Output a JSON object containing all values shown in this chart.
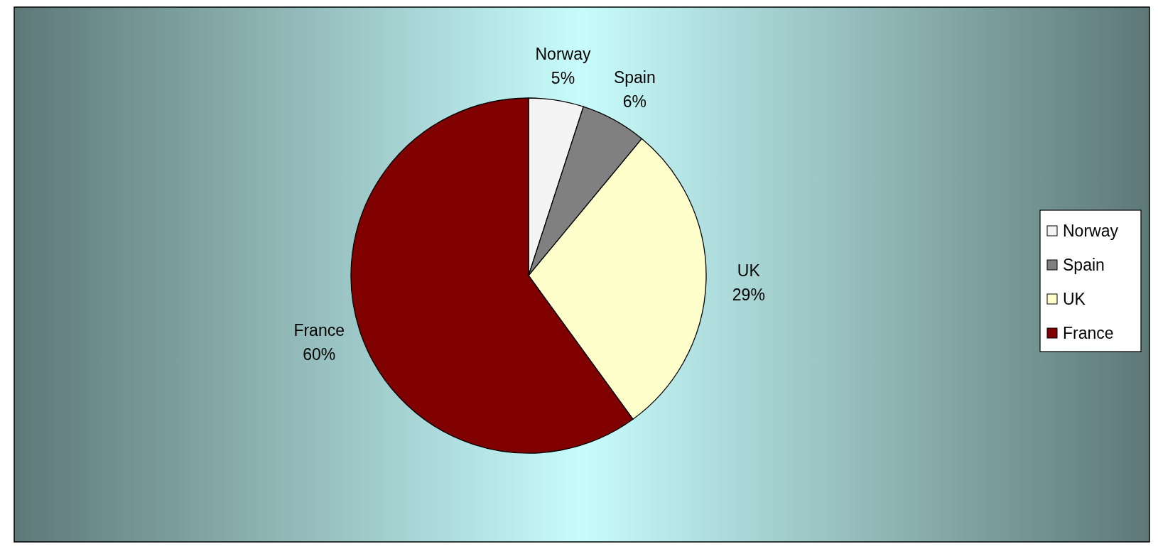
{
  "chart_data": {
    "type": "pie",
    "categories": [
      "Norway",
      "Spain",
      "UK",
      "France"
    ],
    "values": [
      5,
      6,
      29,
      60
    ],
    "colors": [
      "#f4f4f4",
      "#808080",
      "#ffffcc",
      "#800000"
    ],
    "value_labels": [
      "5%",
      "6%",
      "29%",
      "60%"
    ],
    "legend": "right"
  }
}
